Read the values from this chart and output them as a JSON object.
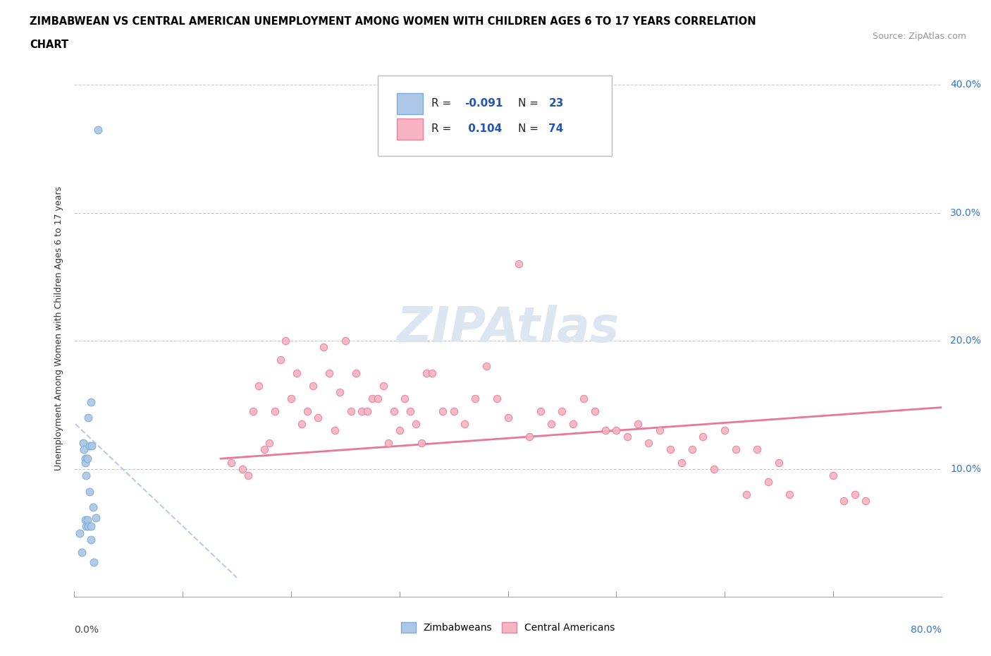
{
  "title_line1": "ZIMBABWEAN VS CENTRAL AMERICAN UNEMPLOYMENT AMONG WOMEN WITH CHILDREN AGES 6 TO 17 YEARS CORRELATION",
  "title_line2": "CHART",
  "source_text": "Source: ZipAtlas.com",
  "ylabel": "Unemployment Among Women with Children Ages 6 to 17 years",
  "xlim": [
    0.0,
    0.8
  ],
  "ylim": [
    0.0,
    0.42
  ],
  "xticks": [
    0.0,
    0.1,
    0.2,
    0.3,
    0.4,
    0.5,
    0.6,
    0.7,
    0.8
  ],
  "yticks": [
    0.0,
    0.1,
    0.2,
    0.3,
    0.4
  ],
  "yticklabels_right": [
    "",
    "10.0%",
    "20.0%",
    "30.0%",
    "40.0%"
  ],
  "zimbabwean_color": "#aec6e8",
  "zimbabwean_edge_color": "#7aaed4",
  "central_american_color": "#f9b4c4",
  "central_american_edge_color": "#e8809a",
  "trend_zim_color": "#b8cce8",
  "trend_ca_color": "#e87898",
  "watermark_color": "#dce6f0",
  "legend_r_color": "#2255bb",
  "legend_n_color": "#2255bb",
  "grid_color": "#cccccc",
  "zimbabwean_x": [
    0.005,
    0.007,
    0.008,
    0.009,
    0.01,
    0.01,
    0.01,
    0.011,
    0.011,
    0.012,
    0.012,
    0.013,
    0.013,
    0.014,
    0.014,
    0.015,
    0.015,
    0.015,
    0.016,
    0.017,
    0.018,
    0.02,
    0.022
  ],
  "zimbabwean_y": [
    0.05,
    0.035,
    0.12,
    0.115,
    0.108,
    0.105,
    0.06,
    0.095,
    0.055,
    0.108,
    0.06,
    0.14,
    0.055,
    0.082,
    0.118,
    0.055,
    0.045,
    0.152,
    0.118,
    0.07,
    0.027,
    0.062,
    0.365
  ],
  "central_american_x": [
    0.145,
    0.155,
    0.16,
    0.165,
    0.17,
    0.175,
    0.18,
    0.185,
    0.19,
    0.195,
    0.2,
    0.205,
    0.21,
    0.215,
    0.22,
    0.225,
    0.23,
    0.235,
    0.24,
    0.245,
    0.25,
    0.255,
    0.26,
    0.265,
    0.27,
    0.275,
    0.28,
    0.285,
    0.29,
    0.295,
    0.3,
    0.305,
    0.31,
    0.315,
    0.32,
    0.325,
    0.33,
    0.34,
    0.35,
    0.36,
    0.37,
    0.38,
    0.39,
    0.4,
    0.41,
    0.42,
    0.43,
    0.44,
    0.45,
    0.46,
    0.47,
    0.48,
    0.49,
    0.5,
    0.51,
    0.52,
    0.53,
    0.54,
    0.55,
    0.56,
    0.57,
    0.58,
    0.59,
    0.6,
    0.61,
    0.62,
    0.63,
    0.64,
    0.65,
    0.66,
    0.7,
    0.71,
    0.72,
    0.73
  ],
  "central_american_y": [
    0.105,
    0.1,
    0.095,
    0.145,
    0.165,
    0.115,
    0.12,
    0.145,
    0.185,
    0.2,
    0.155,
    0.175,
    0.135,
    0.145,
    0.165,
    0.14,
    0.195,
    0.175,
    0.13,
    0.16,
    0.2,
    0.145,
    0.175,
    0.145,
    0.145,
    0.155,
    0.155,
    0.165,
    0.12,
    0.145,
    0.13,
    0.155,
    0.145,
    0.135,
    0.12,
    0.175,
    0.175,
    0.145,
    0.145,
    0.135,
    0.155,
    0.18,
    0.155,
    0.14,
    0.26,
    0.125,
    0.145,
    0.135,
    0.145,
    0.135,
    0.155,
    0.145,
    0.13,
    0.13,
    0.125,
    0.135,
    0.12,
    0.13,
    0.115,
    0.105,
    0.115,
    0.125,
    0.1,
    0.13,
    0.115,
    0.08,
    0.115,
    0.09,
    0.105,
    0.08,
    0.095,
    0.075,
    0.08,
    0.075
  ],
  "zim_trend_x": [
    0.001,
    0.15
  ],
  "zim_trend_y": [
    0.135,
    0.015
  ],
  "ca_trend_x": [
    0.135,
    0.8
  ],
  "ca_trend_y": [
    0.108,
    0.148
  ]
}
